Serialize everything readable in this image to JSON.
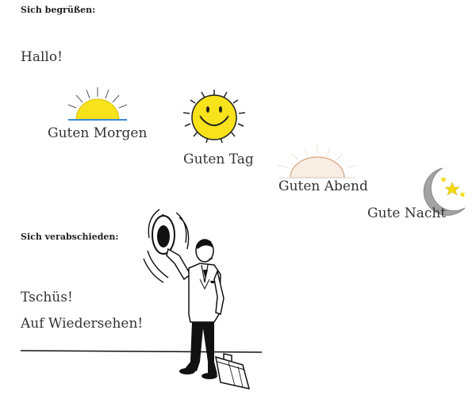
{
  "greeting_section": {
    "heading": "Sich begrüßen:",
    "hello": "Hallo!",
    "morning": "Guten Morgen",
    "day": "Guten Tag",
    "evening": "Guten Abend",
    "night": "Gute Nacht"
  },
  "farewell_section": {
    "heading": "Sich verabschieden:",
    "bye": "Tschüs!",
    "goodbye": "Auf Wiedersehen!"
  },
  "icons": {
    "morning": "sunrise-icon",
    "day": "smiling-sun-icon",
    "evening": "sunset-icon",
    "night": "moon-stars-icon",
    "farewell": "man-waving-hat-illustration"
  },
  "colors": {
    "sun_yellow": "#f7e21b",
    "moon_gray": "#9a9a9a",
    "star_yellow": "#f5d90a",
    "sunset_orange": "#e7b896"
  }
}
